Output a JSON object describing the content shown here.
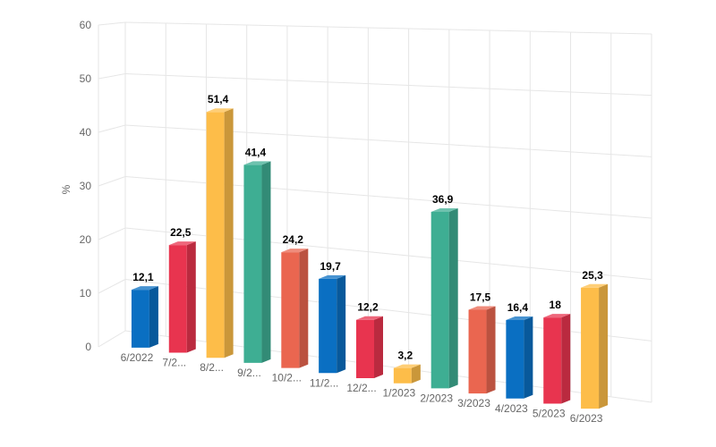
{
  "chart_data": {
    "type": "bar",
    "ylabel": "%",
    "ylim": [
      0,
      60
    ],
    "yticks": [
      "0",
      "10",
      "20",
      "30",
      "40",
      "50",
      "60"
    ],
    "grid": true,
    "categories": [
      "6/2022",
      "7/2...",
      "8/2...",
      "9/2...",
      "10/2...",
      "11/2...",
      "12/2...",
      "1/2023",
      "2/2023",
      "3/2023",
      "4/2023",
      "5/2023",
      "6/2023"
    ],
    "values": [
      12.1,
      22.5,
      51.4,
      41.4,
      24.2,
      19.7,
      12.2,
      3.2,
      36.9,
      17.5,
      16.4,
      18,
      25.3
    ],
    "data_labels": [
      "12,1",
      "22,5",
      "51,4",
      "41,4",
      "24,2",
      "19,7",
      "12,2",
      "3,2",
      "36,9",
      "17,5",
      "16,4",
      "18",
      "25,3"
    ],
    "bar_colors": [
      "#0a6fc2",
      "#e8344f",
      "#fdbd49",
      "#3eae93",
      "#ea6650",
      "#0a6fc2",
      "#e8344f",
      "#fdbd49",
      "#3eae93",
      "#ea6650",
      "#0a6fc2",
      "#e8344f",
      "#fdbd49"
    ]
  }
}
